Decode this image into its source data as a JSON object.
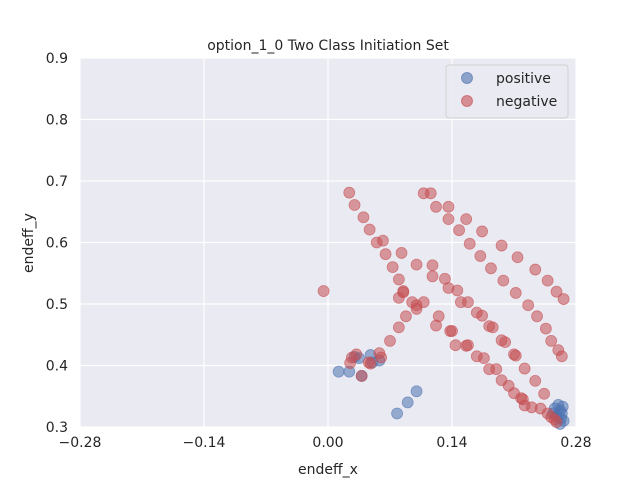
{
  "chart_data": {
    "type": "scatter",
    "title": "option_1_0 Two Class Initiation Set",
    "xlabel": "endeff_x",
    "ylabel": "endeff_y",
    "xlim": [
      -0.28,
      0.28
    ],
    "ylim": [
      0.3,
      0.9
    ],
    "xticks": [
      -0.28,
      -0.14,
      0.0,
      0.14,
      0.28
    ],
    "xtick_labels": [
      "−0.28",
      "−0.14",
      "0.00",
      "0.14",
      "0.28"
    ],
    "yticks": [
      0.3,
      0.4,
      0.5,
      0.6,
      0.7,
      0.8,
      0.9
    ],
    "ytick_labels": [
      "0.3",
      "0.4",
      "0.5",
      "0.6",
      "0.7",
      "0.8",
      "0.9"
    ],
    "grid": true,
    "legend_position": "top-right",
    "series": [
      {
        "name": "positive",
        "color": "#4c72b0",
        "points": [
          [
            0.012,
            0.39
          ],
          [
            0.024,
            0.39
          ],
          [
            0.03,
            0.414
          ],
          [
            0.035,
            0.412
          ],
          [
            0.038,
            0.383
          ],
          [
            0.048,
            0.417
          ],
          [
            0.05,
            0.405
          ],
          [
            0.058,
            0.408
          ],
          [
            0.078,
            0.322
          ],
          [
            0.09,
            0.34
          ],
          [
            0.1,
            0.358
          ],
          [
            0.254,
            0.322
          ],
          [
            0.256,
            0.33
          ],
          [
            0.258,
            0.318
          ],
          [
            0.26,
            0.336
          ],
          [
            0.262,
            0.327
          ],
          [
            0.263,
            0.314
          ],
          [
            0.264,
            0.322
          ],
          [
            0.265,
            0.333
          ],
          [
            0.266,
            0.31
          ],
          [
            0.262,
            0.305
          ]
        ]
      },
      {
        "name": "negative",
        "color": "#c44e52",
        "points": [
          [
            -0.005,
            0.521
          ],
          [
            0.025,
            0.404
          ],
          [
            0.027,
            0.413
          ],
          [
            0.032,
            0.418
          ],
          [
            0.038,
            0.383
          ],
          [
            0.048,
            0.403
          ],
          [
            0.058,
            0.42
          ],
          [
            0.06,
            0.413
          ],
          [
            0.07,
            0.44
          ],
          [
            0.08,
            0.462
          ],
          [
            0.088,
            0.48
          ],
          [
            0.1,
            0.498
          ],
          [
            0.108,
            0.503
          ],
          [
            0.122,
            0.465
          ],
          [
            0.125,
            0.48
          ],
          [
            0.138,
            0.456
          ],
          [
            0.144,
            0.433
          ],
          [
            0.156,
            0.432
          ],
          [
            0.168,
            0.415
          ],
          [
            0.176,
            0.412
          ],
          [
            0.182,
            0.394
          ],
          [
            0.19,
            0.394
          ],
          [
            0.196,
            0.376
          ],
          [
            0.204,
            0.367
          ],
          [
            0.21,
            0.355
          ],
          [
            0.22,
            0.345
          ],
          [
            0.23,
            0.332
          ],
          [
            0.24,
            0.33
          ],
          [
            0.248,
            0.322
          ],
          [
            0.252,
            0.316
          ],
          [
            0.256,
            0.312
          ],
          [
            0.258,
            0.308
          ],
          [
            0.024,
            0.681
          ],
          [
            0.03,
            0.661
          ],
          [
            0.04,
            0.641
          ],
          [
            0.047,
            0.621
          ],
          [
            0.055,
            0.6
          ],
          [
            0.065,
            0.581
          ],
          [
            0.073,
            0.56
          ],
          [
            0.08,
            0.54
          ],
          [
            0.085,
            0.521
          ],
          [
            0.08,
            0.51
          ],
          [
            0.095,
            0.503
          ],
          [
            0.1,
            0.492
          ],
          [
            0.085,
            0.519
          ],
          [
            0.062,
            0.603
          ],
          [
            0.083,
            0.583
          ],
          [
            0.1,
            0.564
          ],
          [
            0.118,
            0.563
          ],
          [
            0.118,
            0.545
          ],
          [
            0.132,
            0.541
          ],
          [
            0.136,
            0.526
          ],
          [
            0.146,
            0.522
          ],
          [
            0.15,
            0.503
          ],
          [
            0.158,
            0.503
          ],
          [
            0.168,
            0.486
          ],
          [
            0.174,
            0.481
          ],
          [
            0.182,
            0.464
          ],
          [
            0.186,
            0.462
          ],
          [
            0.196,
            0.441
          ],
          [
            0.2,
            0.438
          ],
          [
            0.21,
            0.418
          ],
          [
            0.212,
            0.416
          ],
          [
            0.222,
            0.395
          ],
          [
            0.234,
            0.375
          ],
          [
            0.244,
            0.354
          ],
          [
            0.222,
            0.335
          ],
          [
            0.218,
            0.347
          ],
          [
            0.108,
            0.68
          ],
          [
            0.116,
            0.68
          ],
          [
            0.122,
            0.658
          ],
          [
            0.136,
            0.658
          ],
          [
            0.136,
            0.638
          ],
          [
            0.148,
            0.62
          ],
          [
            0.156,
            0.638
          ],
          [
            0.16,
            0.598
          ],
          [
            0.174,
            0.618
          ],
          [
            0.172,
            0.578
          ],
          [
            0.184,
            0.558
          ],
          [
            0.196,
            0.595
          ],
          [
            0.198,
            0.538
          ],
          [
            0.212,
            0.518
          ],
          [
            0.214,
            0.576
          ],
          [
            0.226,
            0.498
          ],
          [
            0.234,
            0.556
          ],
          [
            0.236,
            0.48
          ],
          [
            0.246,
            0.46
          ],
          [
            0.248,
            0.538
          ],
          [
            0.252,
            0.44
          ],
          [
            0.258,
            0.52
          ],
          [
            0.26,
            0.425
          ],
          [
            0.264,
            0.415
          ],
          [
            0.266,
            0.508
          ],
          [
            0.046,
            0.405
          ],
          [
            0.14,
            0.456
          ],
          [
            0.158,
            0.433
          ]
        ]
      }
    ]
  }
}
